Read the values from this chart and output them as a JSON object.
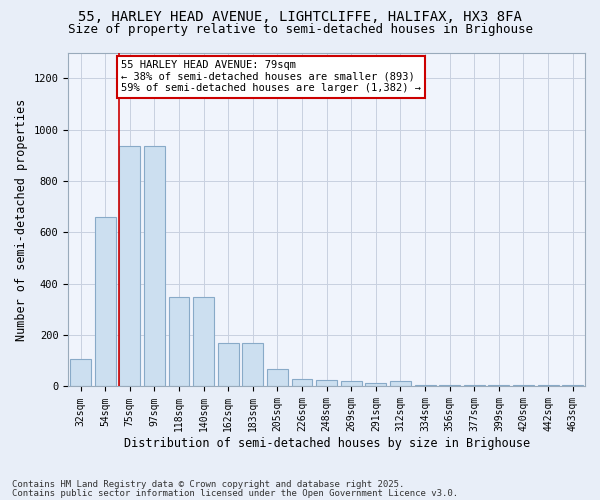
{
  "title_line1": "55, HARLEY HEAD AVENUE, LIGHTCLIFFE, HALIFAX, HX3 8FA",
  "title_line2": "Size of property relative to semi-detached houses in Brighouse",
  "xlabel": "Distribution of semi-detached houses by size in Brighouse",
  "ylabel": "Number of semi-detached properties",
  "categories": [
    "32sqm",
    "54sqm",
    "75sqm",
    "97sqm",
    "118sqm",
    "140sqm",
    "162sqm",
    "183sqm",
    "205sqm",
    "226sqm",
    "248sqm",
    "269sqm",
    "291sqm",
    "312sqm",
    "334sqm",
    "356sqm",
    "377sqm",
    "399sqm",
    "420sqm",
    "442sqm",
    "463sqm"
  ],
  "values": [
    105,
    660,
    935,
    935,
    350,
    350,
    170,
    170,
    68,
    28,
    25,
    20,
    15,
    20,
    5,
    5,
    5,
    5,
    5,
    5,
    5
  ],
  "bar_color": "#ccdff0",
  "bar_edgecolor": "#88aac8",
  "highlight_index": 2,
  "highlight_line_color": "#cc0000",
  "annotation_text": "55 HARLEY HEAD AVENUE: 79sqm\n← 38% of semi-detached houses are smaller (893)\n59% of semi-detached houses are larger (1,382) →",
  "annotation_box_edgecolor": "#cc0000",
  "annotation_box_facecolor": "#ffffff",
  "ylim": [
    0,
    1300
  ],
  "yticks": [
    0,
    200,
    400,
    600,
    800,
    1000,
    1200
  ],
  "footer_line1": "Contains HM Land Registry data © Crown copyright and database right 2025.",
  "footer_line2": "Contains public sector information licensed under the Open Government Licence v3.0.",
  "bg_color": "#e8eef8",
  "plot_bg_color": "#f0f4fc",
  "grid_color": "#c8d0e0",
  "title_fontsize": 10,
  "subtitle_fontsize": 9,
  "axis_label_fontsize": 8.5,
  "tick_fontsize": 7,
  "annotation_fontsize": 7.5,
  "footer_fontsize": 6.5
}
